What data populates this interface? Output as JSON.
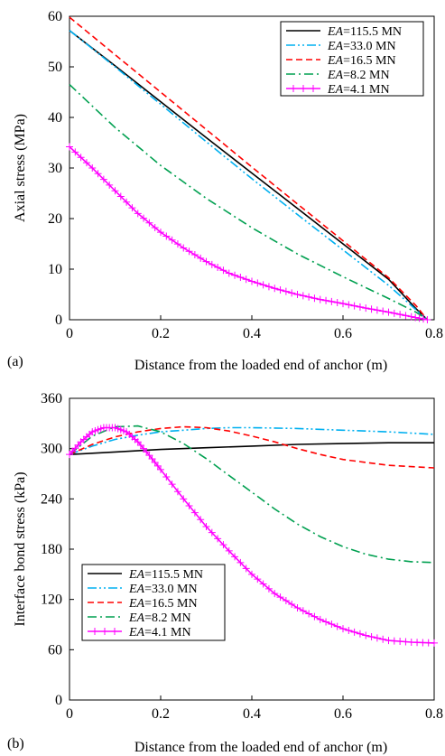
{
  "chart_data": [
    {
      "panel_label": "(a)",
      "type": "line",
      "xlabel": "Distance from the loaded end of anchor (m)",
      "ylabel": "Axial stress (MPa)",
      "xlim": [
        0,
        0.8
      ],
      "ylim": [
        0,
        60
      ],
      "xticks": [
        "0",
        "0.2",
        "0.4",
        "0.6",
        "0.8"
      ],
      "yticks": [
        "0",
        "10",
        "20",
        "30",
        "40",
        "50",
        "60"
      ],
      "grid": false,
      "legend_position": "top-right",
      "series": [
        {
          "name_var": "EA",
          "name": "=115.5 MN",
          "color": "#000000",
          "dash": "solid",
          "marker": "none",
          "x": [
            0,
            0.1,
            0.2,
            0.3,
            0.4,
            0.5,
            0.6,
            0.7,
            0.76,
            0.785
          ],
          "y": [
            57.2,
            50.2,
            43.1,
            36.0,
            29.0,
            22.0,
            15.0,
            8.0,
            2.2,
            0
          ]
        },
        {
          "name_var": "EA",
          "name": "=33.0 MN",
          "color": "#00B0F0",
          "dash": "dash-dot-dot",
          "marker": "none",
          "x": [
            0,
            0.1,
            0.2,
            0.3,
            0.4,
            0.5,
            0.6,
            0.7,
            0.76,
            0.785
          ],
          "y": [
            57.2,
            50.0,
            42.6,
            35.2,
            27.9,
            20.8,
            13.8,
            6.8,
            2.0,
            0
          ]
        },
        {
          "name_var": "EA",
          "name": "=16.5 MN",
          "color": "#FF0000",
          "dash": "dash",
          "marker": "none",
          "x": [
            0,
            0.1,
            0.2,
            0.3,
            0.4,
            0.5,
            0.6,
            0.7,
            0.76,
            0.785
          ],
          "y": [
            59.8,
            52.4,
            45.0,
            37.6,
            30.2,
            22.9,
            15.6,
            8.3,
            2.8,
            0
          ]
        },
        {
          "name_var": "EA",
          "name": "=8.2 MN",
          "color": "#00A050",
          "dash": "dash-dot",
          "marker": "none",
          "x": [
            0,
            0.1,
            0.2,
            0.3,
            0.4,
            0.5,
            0.6,
            0.7,
            0.76,
            0.785
          ],
          "y": [
            46.5,
            38.0,
            30.5,
            24.0,
            18.2,
            13.0,
            8.5,
            4.2,
            1.5,
            0
          ]
        },
        {
          "name_var": "EA",
          "name": "=4.1 MN",
          "color": "#FF00FF",
          "dash": "solid",
          "marker": "plus",
          "x": [
            0,
            0.05,
            0.1,
            0.15,
            0.2,
            0.25,
            0.3,
            0.35,
            0.4,
            0.45,
            0.5,
            0.55,
            0.6,
            0.65,
            0.7,
            0.75,
            0.785
          ],
          "y": [
            34.2,
            30.0,
            25.5,
            21.0,
            17.3,
            14.2,
            11.5,
            9.2,
            7.6,
            6.2,
            5.0,
            4.0,
            3.2,
            2.3,
            1.5,
            0.6,
            0
          ]
        }
      ]
    },
    {
      "panel_label": "(b)",
      "type": "line",
      "xlabel": "Distance from the loaded end of anchor (m)",
      "ylabel": "Interface bond stress (kPa)",
      "xlim": [
        0,
        0.8
      ],
      "ylim": [
        0,
        360
      ],
      "xticks": [
        "0",
        "0.2",
        "0.4",
        "0.6",
        "0.8"
      ],
      "yticks": [
        "0",
        "60",
        "120",
        "180",
        "240",
        "300",
        "360"
      ],
      "grid": false,
      "legend_position": "bottom-left",
      "series": [
        {
          "name_var": "EA",
          "name": "=115.5 MN",
          "color": "#000000",
          "dash": "solid",
          "marker": "none",
          "x": [
            0,
            0.1,
            0.2,
            0.3,
            0.4,
            0.5,
            0.6,
            0.7,
            0.8
          ],
          "y": [
            293,
            296,
            299,
            301,
            303,
            305,
            306,
            307,
            307
          ]
        },
        {
          "name_var": "EA",
          "name": "=33.0 MN",
          "color": "#00B0F0",
          "dash": "dash-dot-dot",
          "marker": "none",
          "x": [
            0,
            0.05,
            0.1,
            0.15,
            0.2,
            0.25,
            0.3,
            0.35,
            0.4,
            0.5,
            0.6,
            0.7,
            0.8
          ],
          "y": [
            293,
            303,
            311,
            316,
            320,
            322,
            324,
            325,
            325,
            324,
            322,
            320,
            317
          ]
        },
        {
          "name_var": "EA",
          "name": "=16.5 MN",
          "color": "#FF0000",
          "dash": "dash",
          "marker": "none",
          "x": [
            0,
            0.05,
            0.1,
            0.15,
            0.2,
            0.25,
            0.3,
            0.35,
            0.4,
            0.45,
            0.5,
            0.55,
            0.6,
            0.7,
            0.8
          ],
          "y": [
            293,
            305,
            314,
            320,
            324,
            326,
            325,
            321,
            315,
            308,
            300,
            293,
            287,
            280,
            277
          ]
        },
        {
          "name_var": "EA",
          "name": "=8.2 MN",
          "color": "#00A050",
          "dash": "dash-dot",
          "marker": "none",
          "x": [
            0,
            0.05,
            0.1,
            0.15,
            0.2,
            0.25,
            0.3,
            0.35,
            0.4,
            0.45,
            0.5,
            0.55,
            0.6,
            0.65,
            0.7,
            0.75,
            0.8
          ],
          "y": [
            293,
            315,
            326,
            327,
            320,
            306,
            288,
            268,
            248,
            228,
            210,
            195,
            183,
            174,
            168,
            165,
            164
          ]
        },
        {
          "name_var": "EA",
          "name": "=4.1 MN",
          "color": "#FF00FF",
          "dash": "solid",
          "marker": "plus",
          "x": [
            0,
            0.025,
            0.05,
            0.075,
            0.1,
            0.125,
            0.15,
            0.175,
            0.2,
            0.25,
            0.3,
            0.35,
            0.4,
            0.45,
            0.5,
            0.55,
            0.6,
            0.65,
            0.7,
            0.75,
            0.8
          ],
          "y": [
            293,
            308,
            320,
            325,
            325,
            320,
            308,
            292,
            275,
            240,
            207,
            178,
            150,
            127,
            110,
            96,
            85,
            77,
            71,
            69,
            68
          ]
        }
      ]
    }
  ]
}
